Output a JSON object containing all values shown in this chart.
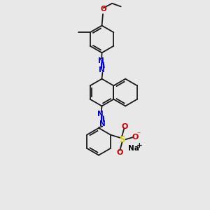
{
  "background_color": "#e8e8e8",
  "bond_color": "#1a1a1a",
  "azo_color": "#0000cc",
  "oxygen_color": "#cc0000",
  "sulfur_color": "#cccc00",
  "sodium_color": "#000000",
  "line_width": 1.3,
  "figsize": [
    3.0,
    3.0
  ],
  "dpi": 100,
  "xlim": [
    0,
    10
  ],
  "ylim": [
    0,
    10
  ]
}
